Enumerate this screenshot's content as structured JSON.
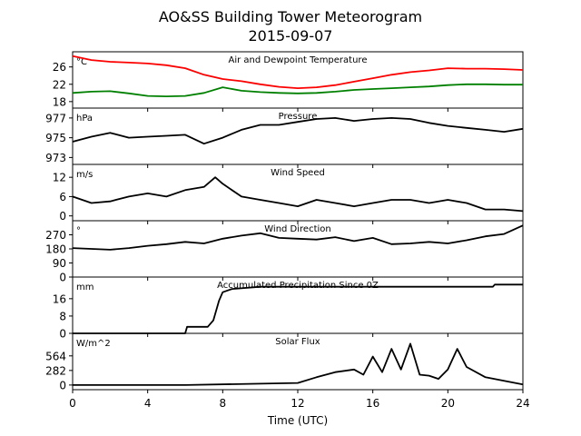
{
  "figure": {
    "title": "AO&SS Building Tower Meteorogram",
    "subtitle": "2015-09-07",
    "xlabel": "Time (UTC)",
    "x_ticks": [
      0,
      4,
      8,
      12,
      16,
      20,
      24
    ],
    "x_range": [
      0,
      24
    ]
  },
  "chart_data": [
    {
      "type": "line",
      "title": "Air and Dewpoint Temperature",
      "unit": "°C",
      "ylim": [
        16.5,
        29.5
      ],
      "yticks": [
        18,
        22,
        26
      ],
      "x": [
        0,
        1,
        2,
        3,
        4,
        5,
        6,
        7,
        8,
        9,
        10,
        11,
        12,
        13,
        14,
        15,
        16,
        17,
        18,
        19,
        20,
        21,
        22,
        23,
        24
      ],
      "series": [
        {
          "color": "#ff0000",
          "values": [
            28.5,
            27.6,
            27.2,
            27.0,
            26.8,
            26.4,
            25.7,
            24.2,
            23.2,
            22.7,
            22.0,
            21.4,
            21.1,
            21.3,
            21.8,
            22.6,
            23.4,
            24.2,
            24.8,
            25.2,
            25.7,
            25.6,
            25.6,
            25.5,
            25.3
          ]
        },
        {
          "color": "#008000",
          "values": [
            20.0,
            20.3,
            20.4,
            19.9,
            19.3,
            19.2,
            19.3,
            20.0,
            21.3,
            20.5,
            20.2,
            20.0,
            19.9,
            20.0,
            20.3,
            20.7,
            20.9,
            21.1,
            21.3,
            21.5,
            21.8,
            22.0,
            22.0,
            21.9,
            21.9
          ]
        }
      ]
    },
    {
      "type": "line",
      "title": "Pressure",
      "unit": "hPa",
      "ylim": [
        972.3,
        978.0
      ],
      "yticks": [
        973,
        975,
        977
      ],
      "x": [
        0,
        1,
        2,
        3,
        4,
        5,
        6,
        7,
        8,
        9,
        10,
        11,
        12,
        13,
        14,
        15,
        16,
        17,
        18,
        19,
        20,
        21,
        22,
        23,
        24
      ],
      "series": [
        {
          "color": "#000000",
          "values": [
            974.6,
            975.1,
            975.5,
            975.0,
            975.1,
            975.2,
            975.3,
            974.4,
            975.0,
            975.8,
            976.3,
            976.3,
            976.6,
            976.9,
            977.0,
            976.7,
            976.9,
            977.0,
            976.9,
            976.5,
            976.2,
            976.0,
            975.8,
            975.6,
            975.9
          ]
        }
      ]
    },
    {
      "type": "line",
      "title": "Wind Speed",
      "unit": "m/s",
      "ylim": [
        -1.5,
        16
      ],
      "yticks": [
        0,
        6,
        12
      ],
      "x": [
        0,
        1,
        2,
        3,
        4,
        5,
        6,
        7,
        7.6,
        8,
        9,
        10,
        11,
        12,
        13,
        14,
        15,
        16,
        17,
        18,
        19,
        20,
        21,
        22,
        23,
        24
      ],
      "series": [
        {
          "color": "#000000",
          "values": [
            6,
            4,
            4.5,
            6,
            7,
            6,
            8,
            9,
            12,
            10,
            6,
            5,
            4,
            3,
            5,
            4,
            3,
            4,
            5,
            5,
            4,
            5,
            4,
            2,
            2,
            1.5
          ]
        }
      ]
    },
    {
      "type": "line",
      "title": "Wind Direction",
      "unit": "°",
      "ylim": [
        0,
        360
      ],
      "yticks": [
        0,
        90,
        180,
        270
      ],
      "x": [
        0,
        1,
        2,
        3,
        4,
        5,
        6,
        7,
        8,
        9,
        10,
        11,
        12,
        13,
        14,
        15,
        16,
        17,
        18,
        19,
        20,
        21,
        22,
        23,
        24
      ],
      "series": [
        {
          "color": "#000000",
          "values": [
            185,
            180,
            175,
            185,
            200,
            210,
            225,
            215,
            245,
            265,
            280,
            250,
            245,
            240,
            255,
            230,
            250,
            210,
            215,
            225,
            215,
            235,
            260,
            275,
            330
          ]
        }
      ]
    },
    {
      "type": "line",
      "title": "Accumulated Precipitation Since 0Z",
      "unit": "mm",
      "ylim": [
        0,
        26
      ],
      "yticks": [
        0,
        8,
        16
      ],
      "x": [
        0,
        6,
        6.1,
        7.2,
        7.5,
        7.8,
        8.0,
        8.5,
        10,
        12,
        16,
        20,
        22.4,
        22.5,
        24
      ],
      "series": [
        {
          "color": "#000000",
          "values": [
            0,
            0,
            3,
            3,
            6,
            15,
            19,
            20.5,
            21.5,
            21.5,
            21.5,
            21.5,
            21.5,
            22.5,
            22.5
          ]
        }
      ]
    },
    {
      "type": "line",
      "title": "Solar Flux",
      "unit": "W/m^2",
      "ylim": [
        -90,
        1000
      ],
      "yticks": [
        0,
        282,
        564
      ],
      "x": [
        0,
        6,
        12,
        13,
        14,
        15,
        15.5,
        16,
        16.5,
        17,
        17.5,
        18,
        18.5,
        19,
        19.5,
        20,
        20.5,
        21,
        22,
        23,
        24
      ],
      "series": [
        {
          "color": "#000000",
          "values": [
            0,
            0,
            40,
            150,
            250,
            300,
            200,
            550,
            250,
            700,
            300,
            800,
            200,
            180,
            120,
            300,
            700,
            350,
            150,
            80,
            10
          ]
        }
      ]
    }
  ]
}
